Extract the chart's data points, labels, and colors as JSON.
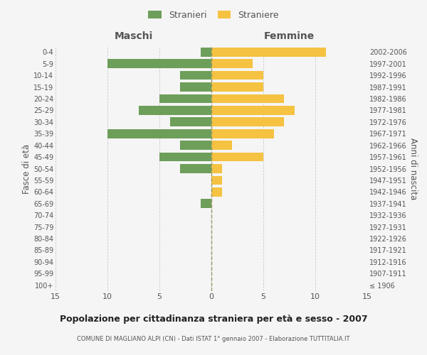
{
  "age_groups": [
    "100+",
    "95-99",
    "90-94",
    "85-89",
    "80-84",
    "75-79",
    "70-74",
    "65-69",
    "60-64",
    "55-59",
    "50-54",
    "45-49",
    "40-44",
    "35-39",
    "30-34",
    "25-29",
    "20-24",
    "15-19",
    "10-14",
    "5-9",
    "0-4"
  ],
  "birth_years": [
    "≤ 1906",
    "1907-1911",
    "1912-1916",
    "1917-1921",
    "1922-1926",
    "1927-1931",
    "1932-1936",
    "1937-1941",
    "1942-1946",
    "1947-1951",
    "1952-1956",
    "1957-1961",
    "1962-1966",
    "1967-1971",
    "1972-1976",
    "1977-1981",
    "1982-1986",
    "1987-1991",
    "1992-1996",
    "1997-2001",
    "2002-2006"
  ],
  "males": [
    0,
    0,
    0,
    0,
    0,
    0,
    0,
    1,
    0,
    0,
    3,
    5,
    3,
    10,
    4,
    7,
    5,
    3,
    3,
    10,
    1
  ],
  "females": [
    0,
    0,
    0,
    0,
    0,
    0,
    0,
    0,
    1,
    1,
    1,
    5,
    2,
    6,
    7,
    8,
    7,
    5,
    5,
    4,
    11
  ],
  "male_color": "#6d9e5a",
  "female_color": "#f5c242",
  "title": "Popolazione per cittadinanza straniera per età e sesso - 2007",
  "subtitle": "COMUNE DI MAGLIANO ALPI (CN) - Dati ISTAT 1° gennaio 2007 - Elaborazione TUTTITALIA.IT",
  "xlabel_left": "Maschi",
  "xlabel_right": "Femmine",
  "ylabel_left": "Fasce di età",
  "ylabel_right": "Anni di nascita",
  "xlim": 15,
  "legend_male": "Stranieri",
  "legend_female": "Straniere",
  "background_color": "#f5f5f5",
  "grid_color": "#cccccc",
  "text_color": "#555555"
}
